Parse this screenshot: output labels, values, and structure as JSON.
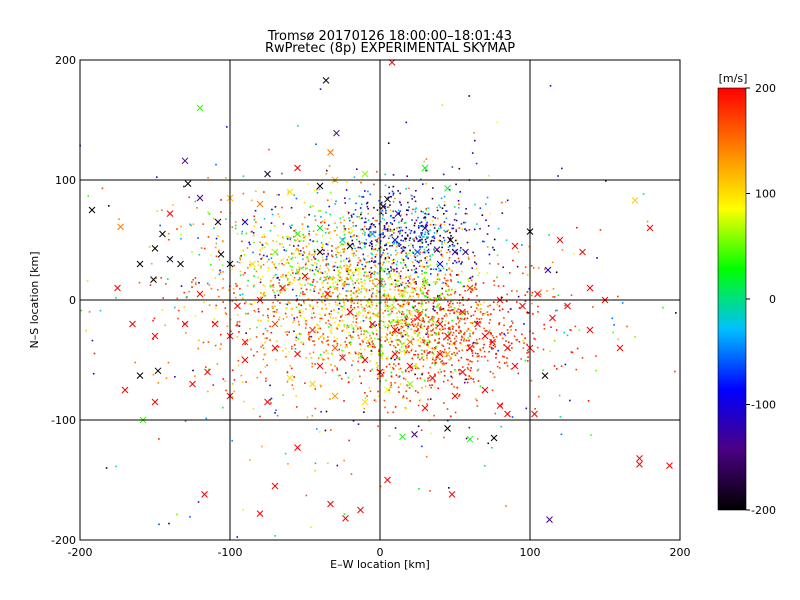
{
  "chart_data": {
    "type": "scatter",
    "title": "Tromsø 20170126 18:00:00–18:01:43",
    "subtitle": "RwPretec (8p) EXPERIMENTAL SKYMAP",
    "xlabel": "E–W location [km]",
    "ylabel": "N–S location [km]",
    "xlim": [
      -200,
      200
    ],
    "ylim": [
      -200,
      200
    ],
    "xticks": [
      "-200",
      "-100",
      "0",
      "100",
      "200"
    ],
    "yticks": [
      "-200",
      "-100",
      "0",
      "100",
      "200"
    ],
    "grid": "on",
    "colorbar": {
      "label": "[m/s]",
      "range": [
        -200,
        200
      ],
      "ticks": [
        "200",
        "100",
        "0",
        "-100",
        "-200"
      ],
      "colors": [
        "#000000",
        "#4b0082",
        "#0000ff",
        "#00c0ff",
        "#00ff00",
        "#ffff00",
        "#ff8000",
        "#ff0000"
      ]
    },
    "series": [
      {
        "marker": "x",
        "points": [
          [
            -36,
            183,
            -190
          ],
          [
            8,
            198,
            200
          ],
          [
            -120,
            160,
            40
          ],
          [
            -130,
            116,
            -140
          ],
          [
            -29,
            139,
            -140
          ],
          [
            -33,
            123,
            150
          ],
          [
            -128,
            97,
            -200
          ],
          [
            -192,
            75,
            -200
          ],
          [
            -173,
            61,
            150
          ],
          [
            -108,
            65,
            -190
          ],
          [
            -150,
            43,
            -200
          ],
          [
            -140,
            34,
            -190
          ],
          [
            -133,
            30,
            -190
          ],
          [
            -106,
            38,
            -200
          ],
          [
            -151,
            17,
            -200
          ],
          [
            -100,
            30,
            -200
          ],
          [
            -40,
            40,
            -190
          ],
          [
            -20,
            45,
            -200
          ],
          [
            5,
            84,
            -200
          ],
          [
            2,
            78,
            -190
          ],
          [
            12,
            72,
            -120
          ],
          [
            30,
            60,
            -120
          ],
          [
            38,
            42,
            -150
          ],
          [
            47,
            50,
            -200
          ],
          [
            50,
            40,
            -120
          ],
          [
            57,
            40,
            -130
          ],
          [
            100,
            57,
            -200
          ],
          [
            112,
            25,
            -120
          ],
          [
            170,
            83,
            110
          ],
          [
            -160,
            30,
            -200
          ],
          [
            -148,
            -59,
            -200
          ],
          [
            -160,
            -63,
            -200
          ],
          [
            -158,
            -100,
            40
          ],
          [
            110,
            -63,
            -200
          ],
          [
            113,
            -183,
            -140
          ],
          [
            76,
            -115,
            -200
          ],
          [
            45,
            -107,
            -200
          ],
          [
            23,
            -112,
            -150
          ],
          [
            15,
            -114,
            30
          ],
          [
            60,
            -116,
            30
          ],
          [
            -117,
            -162,
            200
          ],
          [
            -80,
            -178,
            200
          ],
          [
            -70,
            -155,
            200
          ],
          [
            -55,
            -123,
            200
          ],
          [
            -33,
            -170,
            200
          ],
          [
            -13,
            -175,
            200
          ],
          [
            -23,
            -182,
            200
          ],
          [
            5,
            -150,
            200
          ],
          [
            48,
            -162,
            200
          ],
          [
            103,
            -95,
            200
          ],
          [
            173,
            -132,
            200
          ],
          [
            173,
            -137,
            200
          ],
          [
            193,
            -138,
            200
          ],
          [
            80,
            -88,
            200
          ],
          [
            90,
            -55,
            200
          ],
          [
            70,
            -30,
            200
          ],
          [
            45,
            -30,
            200
          ],
          [
            60,
            -40,
            200
          ],
          [
            55,
            -60,
            200
          ],
          [
            40,
            -45,
            200
          ],
          [
            20,
            -55,
            200
          ],
          [
            10,
            -45,
            200
          ],
          [
            0,
            -60,
            200
          ],
          [
            -10,
            -50,
            200
          ],
          [
            -25,
            -48,
            200
          ],
          [
            -40,
            -55,
            200
          ],
          [
            -55,
            -45,
            200
          ],
          [
            -70,
            -40,
            200
          ],
          [
            -90,
            -50,
            200
          ],
          [
            -100,
            -30,
            200
          ],
          [
            -110,
            -20,
            200
          ],
          [
            -95,
            -5,
            200
          ],
          [
            -80,
            0,
            200
          ],
          [
            -65,
            10,
            200
          ],
          [
            -50,
            20,
            200
          ],
          [
            -35,
            5,
            200
          ],
          [
            -20,
            -10,
            200
          ],
          [
            -5,
            -20,
            200
          ],
          [
            10,
            -25,
            200
          ],
          [
            25,
            -15,
            200
          ],
          [
            40,
            -20,
            200
          ],
          [
            55,
            -10,
            200
          ],
          [
            65,
            -20,
            200
          ],
          [
            75,
            -35,
            200
          ],
          [
            85,
            -40,
            200
          ],
          [
            95,
            -5,
            200
          ],
          [
            105,
            5,
            200
          ],
          [
            115,
            -15,
            200
          ],
          [
            125,
            -5,
            200
          ],
          [
            140,
            10,
            200
          ],
          [
            150,
            0,
            200
          ],
          [
            135,
            40,
            200
          ],
          [
            120,
            50,
            200
          ],
          [
            90,
            45,
            200
          ],
          [
            -150,
            -30,
            200
          ],
          [
            -130,
            -20,
            200
          ],
          [
            -120,
            5,
            200
          ],
          [
            -115,
            -60,
            200
          ],
          [
            -125,
            -70,
            200
          ],
          [
            -60,
            -65,
            100
          ],
          [
            -45,
            -70,
            110
          ],
          [
            -30,
            -80,
            130
          ],
          [
            -10,
            -85,
            100
          ],
          [
            5,
            -75,
            80
          ],
          [
            20,
            -70,
            60
          ],
          [
            35,
            -65,
            200
          ],
          [
            -85,
            30,
            100
          ],
          [
            -70,
            40,
            60
          ],
          [
            -55,
            55,
            40
          ],
          [
            -40,
            60,
            20
          ],
          [
            -25,
            50,
            0
          ],
          [
            -5,
            55,
            -40
          ],
          [
            10,
            50,
            -80
          ],
          [
            25,
            40,
            -60
          ],
          [
            40,
            30,
            -100
          ],
          [
            -60,
            90,
            100
          ],
          [
            -80,
            80,
            150
          ],
          [
            -100,
            85,
            120
          ],
          [
            -30,
            100,
            120
          ],
          [
            -10,
            105,
            60
          ],
          [
            30,
            110,
            30
          ],
          [
            45,
            93,
            20
          ],
          [
            -90,
            65,
            -100
          ],
          [
            -75,
            105,
            -180
          ],
          [
            -55,
            110,
            200
          ],
          [
            -40,
            95,
            -200
          ],
          [
            -145,
            55,
            -200
          ],
          [
            -140,
            72,
            200
          ],
          [
            -120,
            85,
            -140
          ],
          [
            0,
            15,
            150
          ],
          [
            15,
            5,
            100
          ],
          [
            -15,
            25,
            80
          ],
          [
            30,
            15,
            50
          ],
          [
            -45,
            -25,
            180
          ],
          [
            -30,
            -40,
            160
          ],
          [
            20,
            -35,
            140
          ],
          [
            45,
            -45,
            120
          ],
          [
            -70,
            -20,
            170
          ],
          [
            -90,
            -35,
            190
          ],
          [
            60,
            10,
            180
          ],
          [
            80,
            0,
            200
          ],
          [
            100,
            -40,
            190
          ],
          [
            -150,
            -85,
            200
          ],
          [
            -170,
            -75,
            200
          ],
          [
            140,
            -25,
            200
          ],
          [
            160,
            -40,
            200
          ],
          [
            180,
            60,
            200
          ],
          [
            -175,
            10,
            200
          ],
          [
            -165,
            -20,
            200
          ],
          [
            -75,
            -85,
            200
          ],
          [
            -100,
            -80,
            200
          ],
          [
            70,
            -75,
            200
          ],
          [
            85,
            -95,
            200
          ],
          [
            30,
            -90,
            200
          ],
          [
            50,
            -80,
            200
          ]
        ]
      }
    ],
    "dot_clusters": [
      {
        "cx": -30,
        "cy": 0,
        "sx": 55,
        "sy": 40,
        "n": 900,
        "vmin": 100,
        "vmax": 200
      },
      {
        "cx": 40,
        "cy": -30,
        "sx": 35,
        "sy": 25,
        "n": 700,
        "vmin": 160,
        "vmax": 200
      },
      {
        "cx": 15,
        "cy": -20,
        "sx": 20,
        "sy": 25,
        "n": 350,
        "vmin": 20,
        "vmax": 120
      },
      {
        "cx": 20,
        "cy": 55,
        "sx": 25,
        "sy": 20,
        "n": 450,
        "vmin": -200,
        "vmax": 0
      },
      {
        "cx": -40,
        "cy": 40,
        "sx": 40,
        "sy": 25,
        "n": 350,
        "vmin": -120,
        "vmax": 140
      },
      {
        "cx": -20,
        "cy": 10,
        "sx": 35,
        "sy": 25,
        "n": 400,
        "vmin": 40,
        "vmax": 140
      },
      {
        "cx": 0,
        "cy": -20,
        "sx": 110,
        "sy": 90,
        "n": 350,
        "vmin": -200,
        "vmax": 200
      }
    ]
  }
}
